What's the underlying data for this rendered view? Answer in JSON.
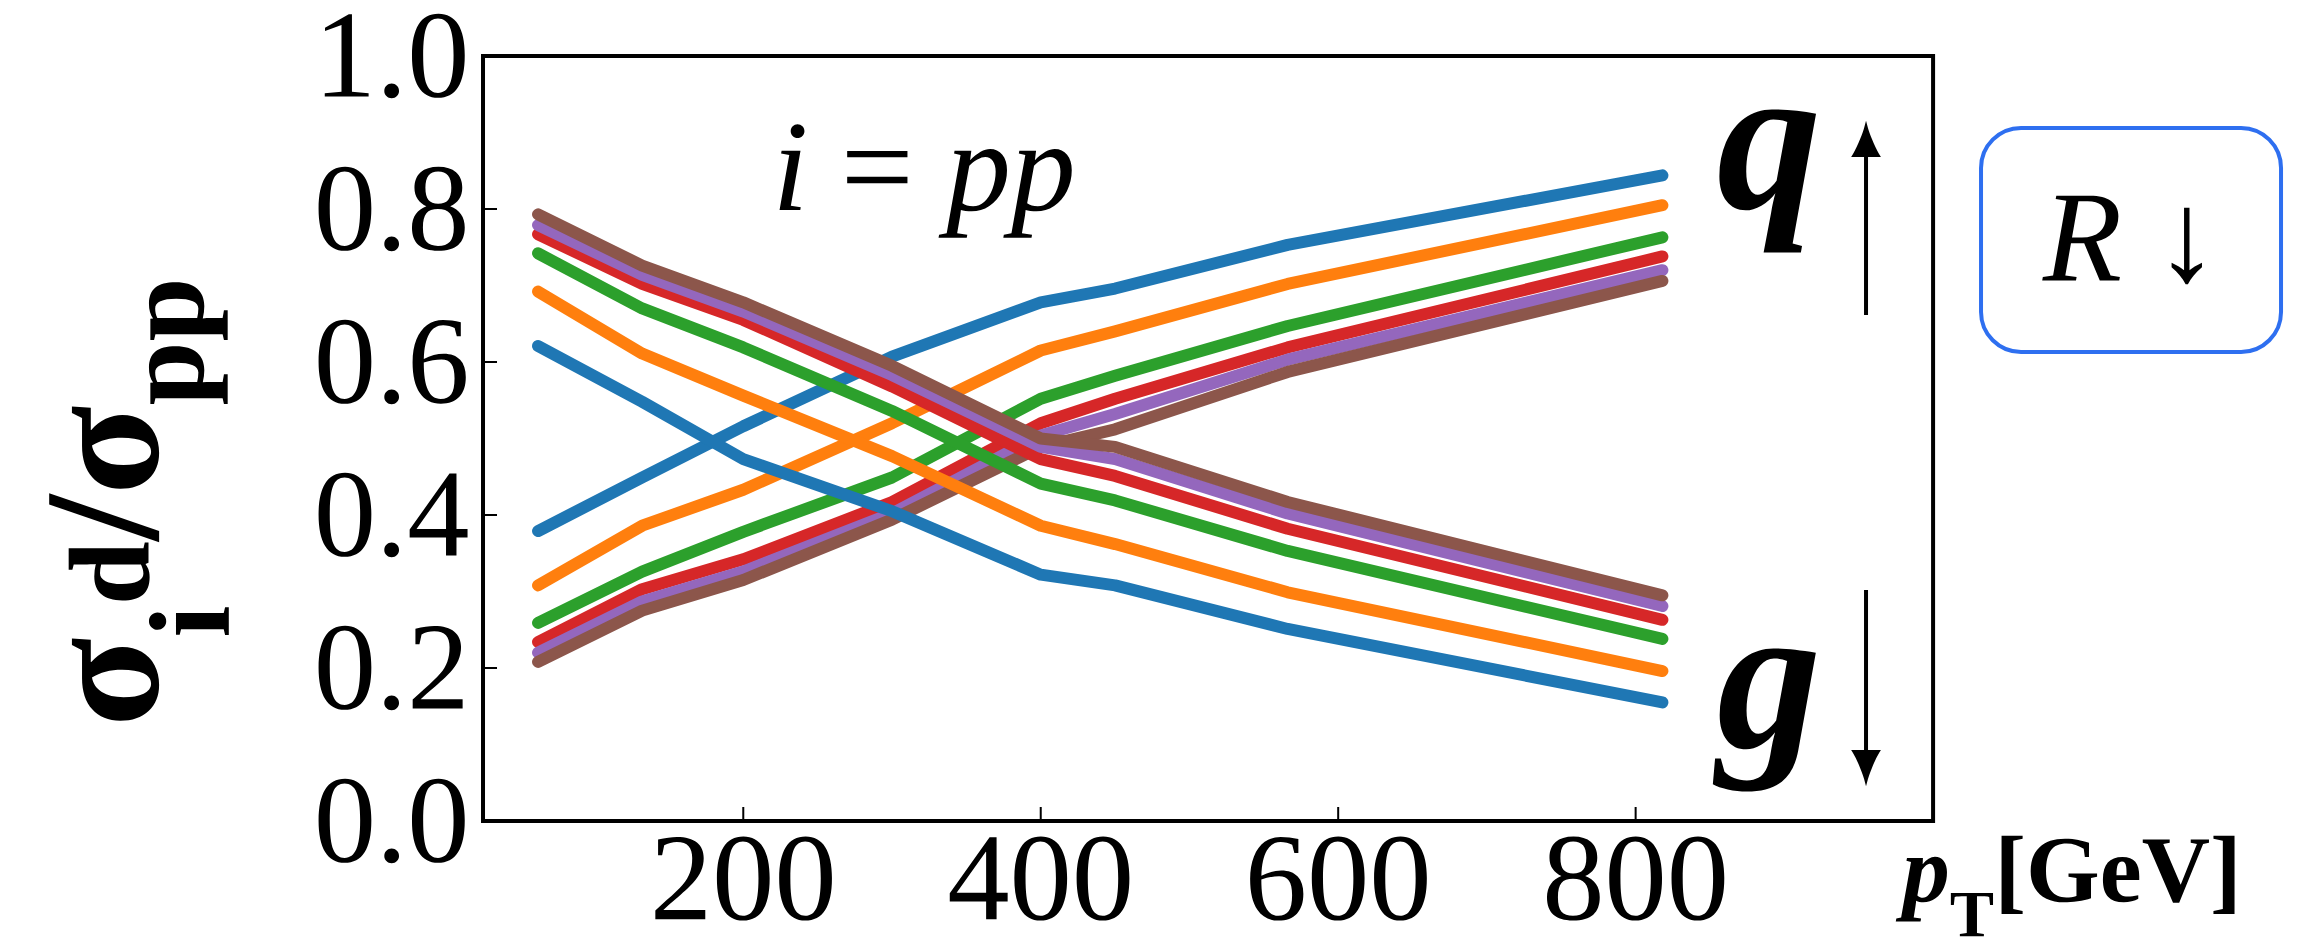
{
  "chart_data": {
    "type": "line",
    "xlabel": "*p*$_{T}$[GeV]",
    "ylabel": "σ$_{i}$$^{d}$/σ$_{pp}$",
    "x": [
      62,
      132,
      200,
      300,
      400,
      450,
      566,
      818
    ],
    "xlim": [
      25,
      1000
    ],
    "xticks": [
      200,
      400,
      600,
      800
    ],
    "ylim": [
      0,
      1
    ],
    "yticks": [
      {
        "value": 0,
        "label": "0.0"
      },
      {
        "value": 0.2,
        "label": "0.2"
      },
      {
        "value": 0.4,
        "label": "0.4"
      },
      {
        "value": 0.6,
        "label": "0.6"
      },
      {
        "value": 0.8,
        "label": "0.8"
      },
      {
        "value": 1,
        "label": "1.0"
      }
    ],
    "annotations": [
      "*i* = *pp*",
      "q",
      "g",
      "*R* ↓"
    ],
    "series": [
      {
        "color": "#1f77b4",
        "values": [
          0.379,
          0.449,
          0.516,
          0.607,
          0.678,
          0.696,
          0.753,
          0.844
        ]
      },
      {
        "color": "#ff7f0e",
        "values": [
          0.308,
          0.386,
          0.433,
          0.52,
          0.615,
          0.64,
          0.702,
          0.805
        ]
      },
      {
        "color": "#2ca02c",
        "values": [
          0.259,
          0.326,
          0.378,
          0.449,
          0.552,
          0.582,
          0.647,
          0.763
        ]
      },
      {
        "color": "#d62728",
        "values": [
          0.234,
          0.303,
          0.342,
          0.417,
          0.52,
          0.552,
          0.619,
          0.738
        ]
      },
      {
        "color": "#9467bd",
        "values": [
          0.22,
          0.287,
          0.326,
          0.402,
          0.504,
          0.532,
          0.603,
          0.72
        ]
      },
      {
        "color": "#8c564b",
        "values": [
          0.208,
          0.275,
          0.315,
          0.394,
          0.489,
          0.512,
          0.587,
          0.706
        ]
      },
      {
        "color": "#1f77b4",
        "values": [
          0.621,
          0.548,
          0.473,
          0.405,
          0.322,
          0.308,
          0.251,
          0.155
        ]
      },
      {
        "color": "#ff7f0e",
        "values": [
          0.692,
          0.611,
          0.556,
          0.477,
          0.386,
          0.362,
          0.299,
          0.196
        ]
      },
      {
        "color": "#2ca02c",
        "values": [
          0.742,
          0.67,
          0.619,
          0.536,
          0.441,
          0.419,
          0.353,
          0.238
        ]
      },
      {
        "color": "#d62728",
        "values": [
          0.767,
          0.702,
          0.655,
          0.568,
          0.473,
          0.451,
          0.382,
          0.263
        ]
      },
      {
        "color": "#9467bd",
        "values": [
          0.779,
          0.714,
          0.666,
          0.583,
          0.489,
          0.473,
          0.402,
          0.281
        ]
      },
      {
        "color": "#8c564b",
        "values": [
          0.793,
          0.726,
          0.678,
          0.595,
          0.5,
          0.489,
          0.417,
          0.295
        ]
      }
    ]
  }
}
